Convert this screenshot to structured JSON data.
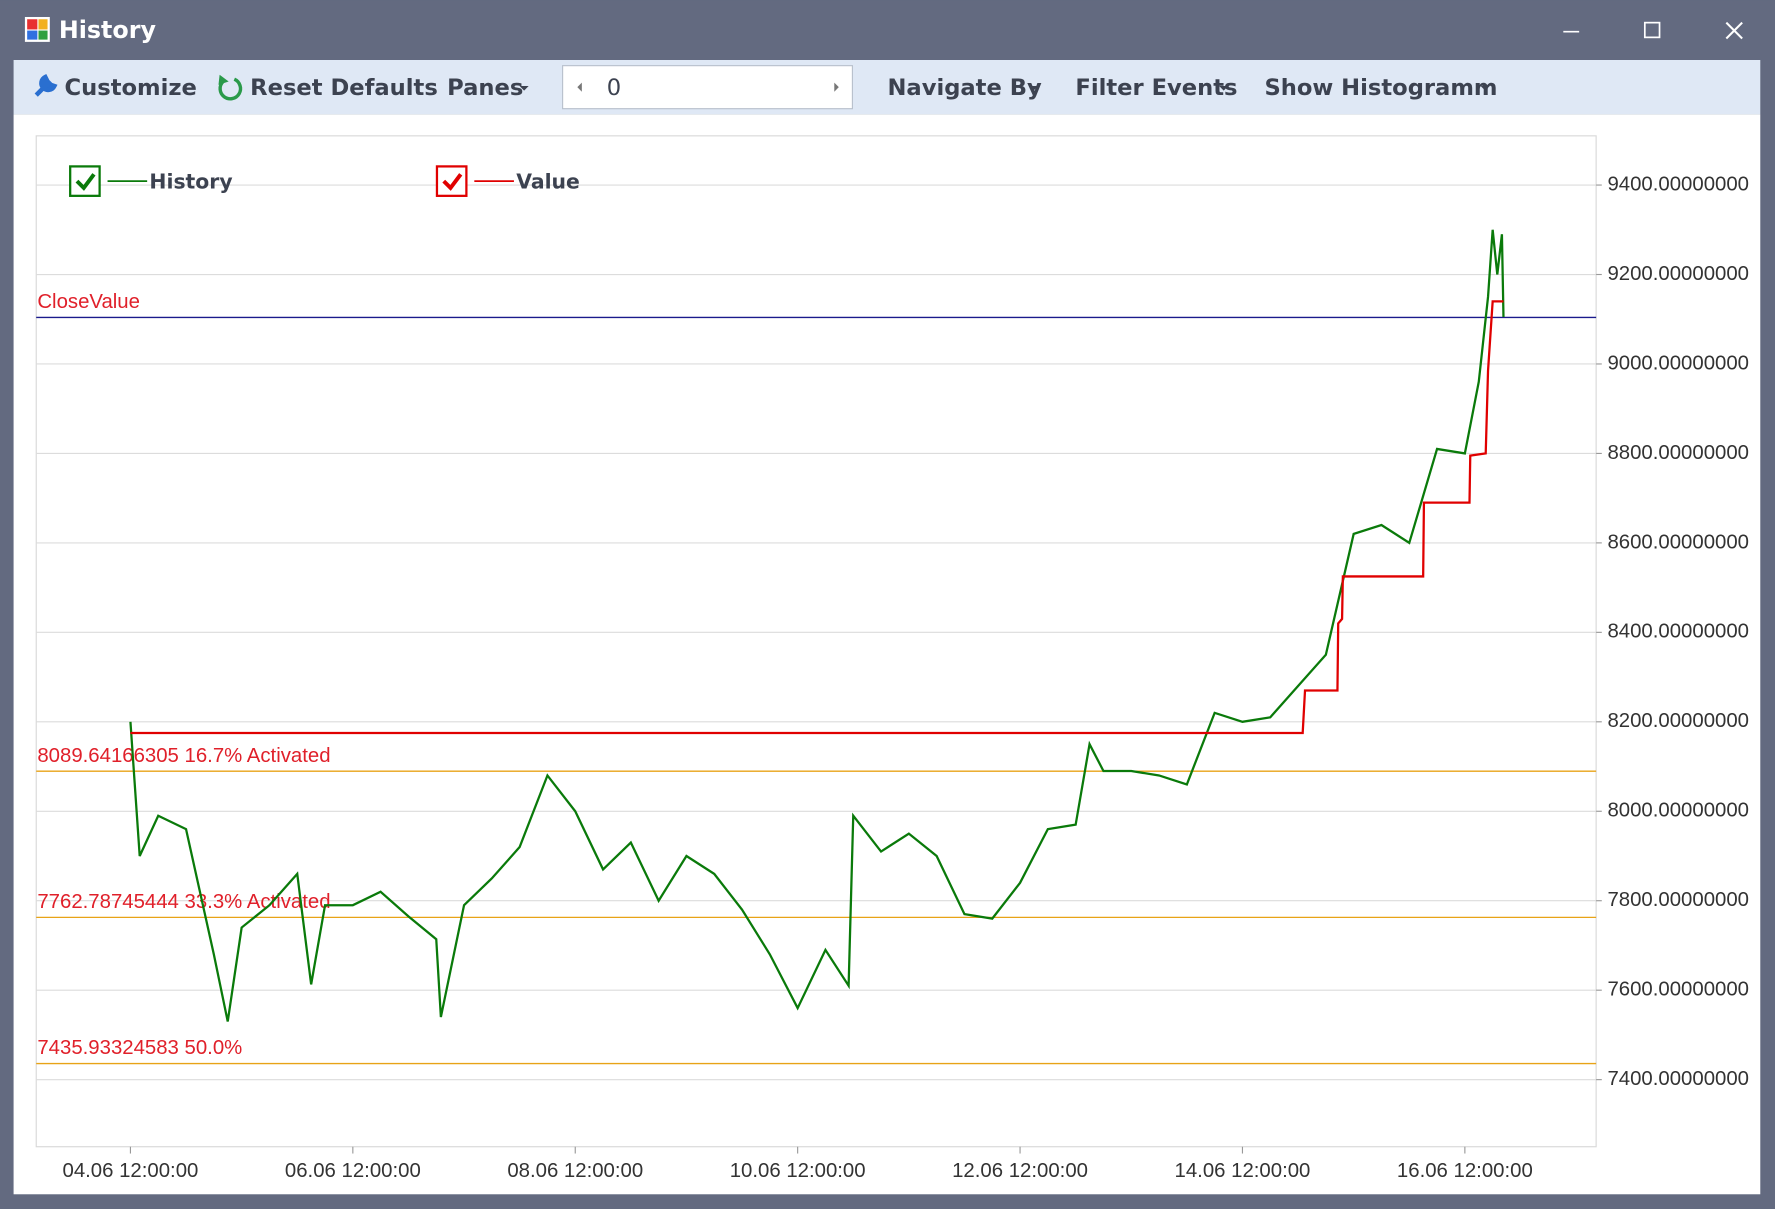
{
  "window": {
    "title": "History"
  },
  "toolbar": {
    "customize": "Customize",
    "reset_defaults": "Reset Defaults",
    "panes": "Panes",
    "navigator_value": "0",
    "navigate_by": "Navigate By",
    "filter_events": "Filter Events",
    "show_histogram": "Show Histogramm"
  },
  "chart_data": {
    "type": "line",
    "series": [
      {
        "name": "History",
        "color": "#0a7a0a",
        "x": [
          "04.06 12:00:00",
          "04.06 14:00:00",
          "04.06 18:00:00",
          "05.06 00:00:00",
          "05.06 06:00:00",
          "05.06 09:00:00",
          "05.06 12:00:00",
          "05.06 18:00:00",
          "06.06 00:00:00",
          "06.06 03:00:00",
          "06.06 06:00:00",
          "06.06 12:00:00",
          "06.06 18:00:00",
          "07.06 00:00:00",
          "07.06 06:00:00",
          "07.06 07:00:00",
          "07.06 12:00:00",
          "07.06 18:00:00",
          "08.06 00:00:00",
          "08.06 06:00:00",
          "08.06 12:00:00",
          "08.06 18:00:00",
          "09.06 00:00:00",
          "09.06 06:00:00",
          "09.06 12:00:00",
          "09.06 18:00:00",
          "10.06 00:00:00",
          "10.06 06:00:00",
          "10.06 12:00:00",
          "10.06 18:00:00",
          "10.06 23:00:00",
          "11.06 00:00:00",
          "11.06 06:00:00",
          "11.06 12:00:00",
          "11.06 18:00:00",
          "12.06 00:00:00",
          "12.06 06:00:00",
          "12.06 12:00:00",
          "12.06 18:00:00",
          "13.06 00:00:00",
          "13.06 03:00:00",
          "13.06 06:00:00",
          "13.06 12:00:00",
          "13.06 18:00:00",
          "14.06 00:00:00",
          "14.06 06:00:00",
          "14.06 12:00:00",
          "14.06 18:00:00",
          "15.06 00:00:00",
          "15.06 06:00:00",
          "15.06 12:00:00",
          "15.06 18:00:00",
          "16.06 00:00:00",
          "16.06 06:00:00",
          "16.06 12:00:00",
          "16.06 15:00:00",
          "16.06 17:00:00",
          "16.06 18:00:00",
          "16.06 19:00:00",
          "16.06 20:00:00",
          "16.06 20:20:00"
        ],
        "values": [
          8200,
          7900,
          7990,
          7960,
          7680,
          7530,
          7740,
          7790,
          7860,
          7613,
          7790,
          7790,
          7820,
          7765,
          7714,
          7540,
          7790,
          7850,
          7920,
          8080,
          8000,
          7870,
          7930,
          7800,
          7900,
          7860,
          7780,
          7680,
          7560,
          7690,
          7610,
          7990,
          7910,
          7950,
          7900,
          7770,
          7760,
          7840,
          7960,
          7970,
          8150,
          8090,
          8090,
          8080,
          8060,
          8220,
          8200,
          8210,
          8280,
          8350,
          8620,
          8640,
          8600,
          8810,
          8800,
          8960,
          9150,
          9300,
          9200,
          9290,
          9105
        ]
      },
      {
        "name": "Value",
        "color": "#e00000",
        "x": [
          "04.06 12:00:00",
          "15.06 01:00:00",
          "15.06 01:30:00",
          "15.06 08:30:00",
          "15.06 08:40:00",
          "15.06 09:30:00",
          "15.06 09:40:00",
          "16.06 03:00:00",
          "16.06 03:10:00",
          "16.06 13:00:00",
          "16.06 13:10:00",
          "16.06 16:30:00",
          "16.06 17:00:00",
          "16.06 18:00:00",
          "16.06 20:20:00"
        ],
        "values": [
          8175,
          8175,
          8270,
          8270,
          8420,
          8430,
          8525,
          8525,
          8690,
          8690,
          8795,
          8800,
          8985,
          9140,
          9140
        ]
      }
    ],
    "annotations": [
      {
        "label": "CloseValue",
        "value": 9104,
        "color": "#1a1a8c"
      },
      {
        "label": "8089.64166305 16.7% Activated",
        "value": 8089.64166305,
        "color": "#e8a317"
      },
      {
        "label": "7762.78745444 33.3% Activated",
        "value": 7762.78745444,
        "color": "#e8a317"
      },
      {
        "label": "7435.93324583 50.0%",
        "value": 7435.93324583,
        "color": "#e8a317"
      }
    ],
    "xlim": [
      "03.06 15:40:00",
      "17.06 16:20:00"
    ],
    "xticks": [
      "04.06 12:00:00",
      "06.06 12:00:00",
      "08.06 12:00:00",
      "10.06 12:00:00",
      "12.06 12:00:00",
      "14.06 12:00:00",
      "16.06 12:00:00"
    ],
    "ylim": [
      7250,
      9510
    ],
    "yticks": [
      {
        "value": 7400,
        "label": "7400.00000000"
      },
      {
        "value": 7600,
        "label": "7600.00000000"
      },
      {
        "value": 7800,
        "label": "7800.00000000"
      },
      {
        "value": 8000,
        "label": "8000.00000000"
      },
      {
        "value": 8200,
        "label": "8200.00000000"
      },
      {
        "value": 8400,
        "label": "8400.00000000"
      },
      {
        "value": 8600,
        "label": "8600.00000000"
      },
      {
        "value": 8800,
        "label": "8800.00000000"
      },
      {
        "value": 9000,
        "label": "9000.00000000"
      },
      {
        "value": 9200,
        "label": "9200.00000000"
      },
      {
        "value": 9400,
        "label": "9400.00000000"
      }
    ],
    "grid": true,
    "legend": "top-left"
  }
}
